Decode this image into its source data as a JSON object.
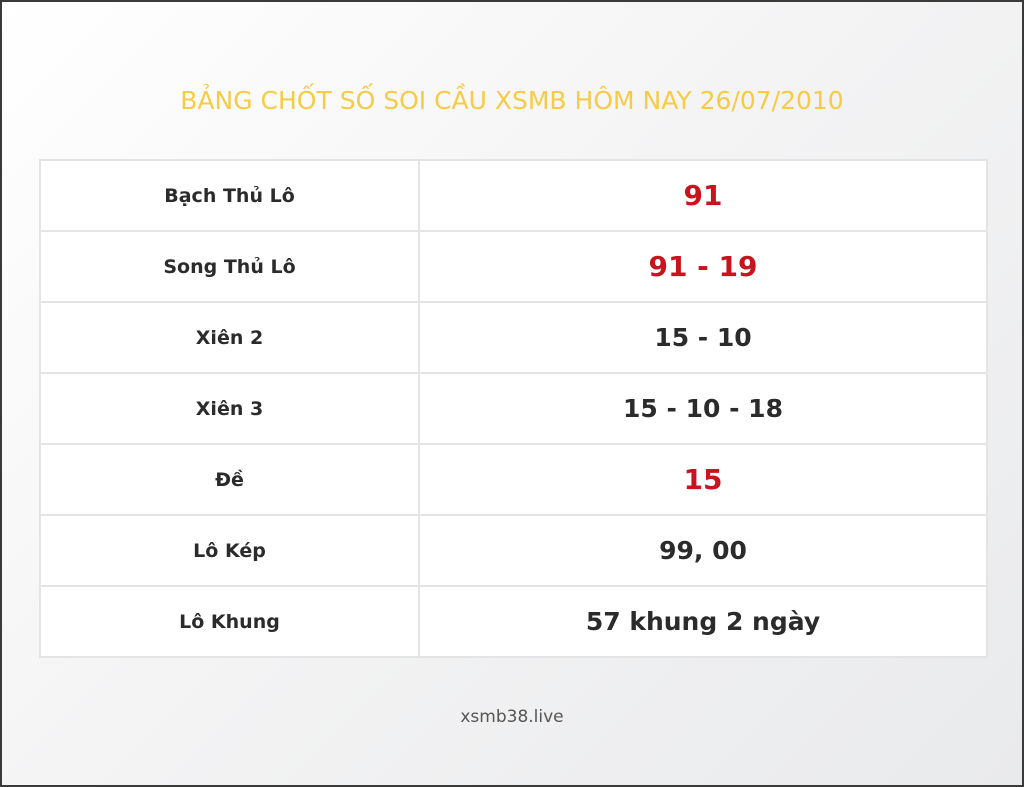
{
  "title": "BẢNG CHỐT SỐ SOI CẦU XSMB HÔM NAY 26/07/2010",
  "rows": [
    {
      "label": "Bạch Thủ Lô",
      "value": "91",
      "highlight": true
    },
    {
      "label": "Song Thủ Lô",
      "value": "91 - 19",
      "highlight": true
    },
    {
      "label": "Xiên 2",
      "value": "15 - 10",
      "highlight": false
    },
    {
      "label": "Xiên 3",
      "value": "15 - 10 - 18",
      "highlight": false
    },
    {
      "label": "Đề",
      "value": "15",
      "highlight": true
    },
    {
      "label": "Lô Kép",
      "value": "99, 00",
      "highlight": false
    },
    {
      "label": "Lô Khung",
      "value": "57 khung 2 ngày",
      "highlight": false
    }
  ],
  "footer": "xsmb38.live",
  "colors": {
    "title": "#f7cb45",
    "highlight": "#c8141e",
    "text": "#2b2b2b"
  }
}
